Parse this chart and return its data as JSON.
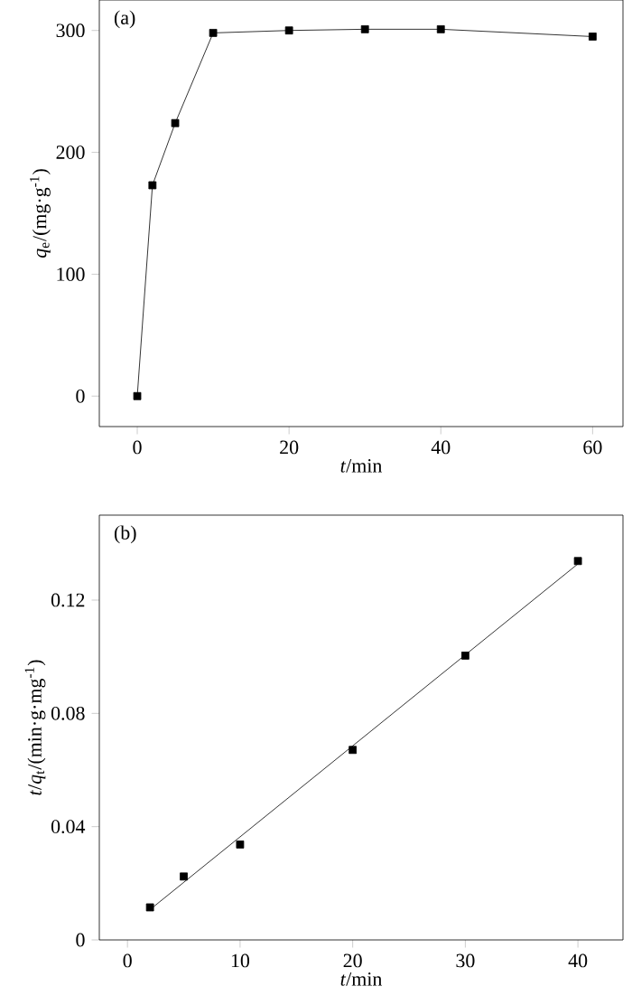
{
  "chart_data": [
    {
      "type": "line",
      "x": [
        0,
        2,
        5,
        10,
        20,
        30,
        40,
        60
      ],
      "values": [
        0,
        173,
        224,
        298,
        300,
        301,
        301,
        295
      ],
      "color": "#000000",
      "marker": "square",
      "line_style": "solid",
      "xlim": [
        -5,
        64
      ],
      "ylim": [
        -25,
        325
      ],
      "xticks": [
        0,
        20,
        40,
        60
      ],
      "yticks": [
        0,
        100,
        200,
        300
      ],
      "xlabel": "*t*/min",
      "ylabel": "*q*$_{e}$/(mg·g$^{-1}$)",
      "annotations": [
        "(a)"
      ]
    },
    {
      "type": "scatter",
      "series": [
        {
          "type": "scatter",
          "x": [
            2,
            5,
            10,
            20,
            30,
            40
          ],
          "values": [
            0.0115,
            0.0224,
            0.0337,
            0.0671,
            0.1004,
            0.1338
          ],
          "color": "#000000",
          "marker": "square"
        },
        {
          "type": "line",
          "x": [
            2,
            40
          ],
          "values": [
            0.0107,
            0.1328
          ],
          "color": "#000000",
          "marker": "none",
          "line_style": "solid"
        }
      ],
      "xlim": [
        -2.5,
        44
      ],
      "ylim": [
        0,
        0.15
      ],
      "xticks": [
        0,
        10,
        20,
        30,
        40
      ],
      "yticks": [
        0,
        0.04,
        0.08,
        0.12
      ],
      "xlabel": "*t*/min",
      "ylabel": "*t*/*q*$_{t}$/(min·g·mg$^{-1}$)",
      "annotations": [
        "(b)"
      ]
    }
  ]
}
